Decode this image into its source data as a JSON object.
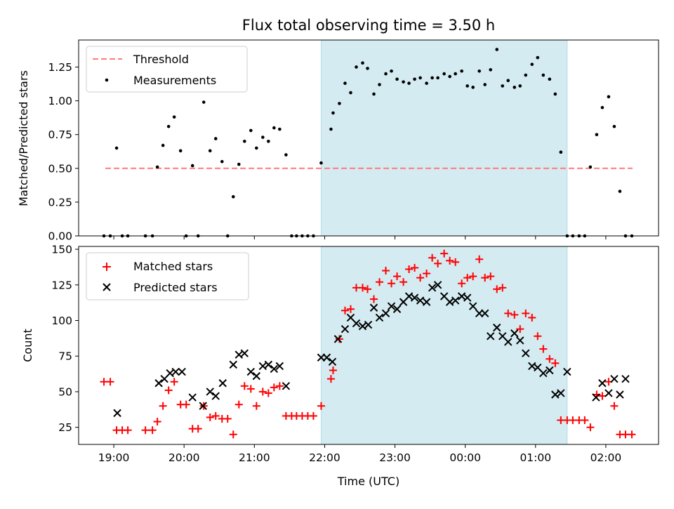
{
  "chart_data": [
    {
      "type": "scatter",
      "title": "Flux total observing time = 3.50 h",
      "xlabel": "",
      "ylabel": "Matched/Predicted stars",
      "x_unit": "hours since 18:00 UTC",
      "xlim": [
        0.5,
        8.75
      ],
      "ylim": [
        0,
        1.45
      ],
      "yticks": [
        0.0,
        0.25,
        0.5,
        0.75,
        1.0,
        1.25
      ],
      "ytick_labels": [
        "0.00",
        "0.25",
        "0.50",
        "0.75",
        "1.00",
        "1.25"
      ],
      "shaded_region": {
        "x": [
          3.95,
          7.45
        ],
        "color": "#d4ebf1"
      },
      "legend": {
        "position": "upper-left",
        "entries": [
          "Threshold",
          "Measurements"
        ]
      },
      "series": [
        {
          "name": "Threshold",
          "kind": "dashed-line",
          "color": "#ff7b7b",
          "x": [
            0.88,
            8.38
          ],
          "y": [
            0.5,
            0.5
          ]
        },
        {
          "name": "Measurements",
          "kind": "points",
          "color": "#000000",
          "x": [
            0.86,
            0.95,
            1.04,
            1.12,
            1.2,
            1.45,
            1.55,
            1.62,
            1.7,
            1.78,
            1.86,
            1.95,
            2.03,
            2.12,
            2.2,
            2.28,
            2.37,
            2.45,
            2.54,
            2.62,
            2.7,
            2.78,
            2.86,
            2.95,
            3.03,
            3.12,
            3.2,
            3.28,
            3.36,
            3.45,
            3.53,
            3.6,
            3.68,
            3.76,
            3.84,
            3.95,
            4.09,
            4.12,
            4.21,
            4.29,
            4.37,
            4.45,
            4.54,
            4.61,
            4.7,
            4.78,
            4.87,
            4.95,
            5.03,
            5.12,
            5.2,
            5.28,
            5.36,
            5.45,
            5.53,
            5.61,
            5.7,
            5.78,
            5.86,
            5.95,
            6.03,
            6.11,
            6.2,
            6.28,
            6.36,
            6.45,
            6.53,
            6.61,
            6.7,
            6.78,
            6.86,
            6.95,
            7.03,
            7.11,
            7.2,
            7.28,
            7.36,
            7.45,
            7.53,
            7.62,
            7.7,
            7.78,
            7.87,
            7.95,
            8.04,
            8.12,
            8.2,
            8.28,
            8.37
          ],
          "y": [
            0.0,
            0.0,
            0.65,
            0.0,
            0.0,
            0.0,
            0.0,
            0.51,
            0.67,
            0.81,
            0.88,
            0.63,
            0.0,
            0.52,
            0.0,
            0.99,
            0.63,
            0.72,
            0.55,
            0.0,
            0.29,
            0.53,
            0.7,
            0.78,
            0.65,
            0.73,
            0.7,
            0.8,
            0.79,
            0.6,
            0.0,
            0.0,
            0.0,
            0.0,
            0.0,
            0.54,
            0.79,
            0.91,
            0.98,
            1.13,
            1.06,
            1.25,
            1.28,
            1.24,
            1.05,
            1.12,
            1.2,
            1.22,
            1.16,
            1.14,
            1.13,
            1.16,
            1.17,
            1.13,
            1.17,
            1.17,
            1.2,
            1.18,
            1.2,
            1.22,
            1.11,
            1.1,
            1.22,
            1.12,
            1.23,
            1.38,
            1.11,
            1.15,
            1.1,
            1.11,
            1.19,
            1.27,
            1.32,
            1.19,
            1.16,
            1.05,
            0.62,
            0.0,
            0.0,
            0.0,
            0.0,
            0.51,
            0.75,
            0.95,
            1.03,
            0.81,
            0.33,
            0.0,
            0.0
          ]
        }
      ]
    },
    {
      "type": "scatter",
      "title": "",
      "xlabel": "Time (UTC)",
      "ylabel": "Count",
      "x_unit": "hours since 18:00 UTC",
      "xlim": [
        0.5,
        8.75
      ],
      "ylim": [
        13,
        152
      ],
      "xticks": [
        1,
        2,
        3,
        4,
        5,
        6,
        7,
        8
      ],
      "xtick_labels": [
        "19:00",
        "20:00",
        "21:00",
        "22:00",
        "23:00",
        "00:00",
        "01:00",
        "02:00"
      ],
      "yticks": [
        25,
        50,
        75,
        100,
        125,
        150
      ],
      "ytick_labels": [
        "25",
        "50",
        "75",
        "100",
        "125",
        "150"
      ],
      "shaded_region": {
        "x": [
          3.95,
          7.45
        ],
        "color": "#d4ebf1"
      },
      "legend": {
        "position": "upper-left",
        "entries": [
          "Matched stars",
          "Predicted stars"
        ]
      },
      "series": [
        {
          "name": "Matched stars",
          "marker": "plus",
          "color": "#ff0000",
          "x": [
            0.86,
            0.95,
            1.04,
            1.12,
            1.2,
            1.45,
            1.55,
            1.62,
            1.7,
            1.78,
            1.86,
            1.95,
            2.03,
            2.12,
            2.2,
            2.28,
            2.37,
            2.45,
            2.54,
            2.62,
            2.7,
            2.78,
            2.86,
            2.95,
            3.03,
            3.12,
            3.2,
            3.28,
            3.36,
            3.45,
            3.53,
            3.6,
            3.68,
            3.76,
            3.84,
            3.95,
            4.09,
            4.12,
            4.21,
            4.29,
            4.37,
            4.45,
            4.54,
            4.61,
            4.7,
            4.78,
            4.87,
            4.95,
            5.03,
            5.12,
            5.2,
            5.28,
            5.36,
            5.45,
            5.53,
            5.61,
            5.7,
            5.78,
            5.86,
            5.95,
            6.03,
            6.11,
            6.2,
            6.28,
            6.36,
            6.45,
            6.53,
            6.61,
            6.7,
            6.78,
            6.86,
            6.95,
            7.03,
            7.11,
            7.2,
            7.28,
            7.36,
            7.45,
            7.53,
            7.62,
            7.7,
            7.78,
            7.87,
            7.95,
            8.04,
            8.12,
            8.2,
            8.28,
            8.37
          ],
          "y": [
            57,
            57,
            23,
            23,
            23,
            23,
            23,
            29,
            40,
            51,
            57,
            41,
            41,
            24,
            24,
            40,
            32,
            33,
            31,
            31,
            20,
            41,
            54,
            52,
            40,
            50,
            49,
            53,
            54,
            33,
            33,
            33,
            33,
            33,
            33,
            40,
            59,
            65,
            87,
            107,
            108,
            123,
            123,
            122,
            115,
            127,
            135,
            126,
            131,
            127,
            136,
            137,
            130,
            133,
            144,
            140,
            147,
            142,
            141,
            126,
            130,
            131,
            143,
            130,
            131,
            122,
            123,
            105,
            104,
            94,
            105,
            102,
            89,
            80,
            73,
            70,
            30,
            30,
            30,
            30,
            30,
            25,
            48,
            47,
            57,
            40,
            20,
            20,
            20
          ],
          "y_note": "x not needed"
        },
        {
          "name": "Predicted stars",
          "marker": "x",
          "color": "#000000",
          "x": [
            1.05,
            1.64,
            1.72,
            1.8,
            1.88,
            1.97,
            2.12,
            2.27,
            2.37,
            2.45,
            2.55,
            2.7,
            2.78,
            2.86,
            2.95,
            3.03,
            3.12,
            3.2,
            3.28,
            3.36,
            3.45,
            3.95,
            4.03,
            4.11,
            4.19,
            4.29,
            4.37,
            4.45,
            4.54,
            4.62,
            4.7,
            4.78,
            4.87,
            4.95,
            5.03,
            5.12,
            5.2,
            5.28,
            5.36,
            5.45,
            5.53,
            5.61,
            5.7,
            5.78,
            5.86,
            5.95,
            6.03,
            6.11,
            6.2,
            6.28,
            6.36,
            6.45,
            6.53,
            6.61,
            6.7,
            6.78,
            6.86,
            6.95,
            7.03,
            7.11,
            7.2,
            7.28,
            7.36,
            7.45,
            7.86,
            7.95,
            8.04,
            8.12,
            8.2,
            8.28
          ],
          "y": [
            35,
            56,
            59,
            63,
            64,
            64,
            46,
            40,
            50,
            47,
            56,
            69,
            76,
            77,
            64,
            61,
            68,
            69,
            66,
            68,
            54,
            74,
            74,
            71,
            87,
            94,
            102,
            98,
            96,
            97,
            109,
            102,
            105,
            110,
            108,
            113,
            117,
            116,
            114,
            113,
            123,
            125,
            117,
            113,
            114,
            117,
            116,
            110,
            105,
            105,
            89,
            95,
            89,
            85,
            91,
            86,
            77,
            68,
            67,
            63,
            65,
            48,
            49,
            64,
            46,
            56,
            49,
            59,
            48,
            59
          ]
        }
      ]
    }
  ]
}
